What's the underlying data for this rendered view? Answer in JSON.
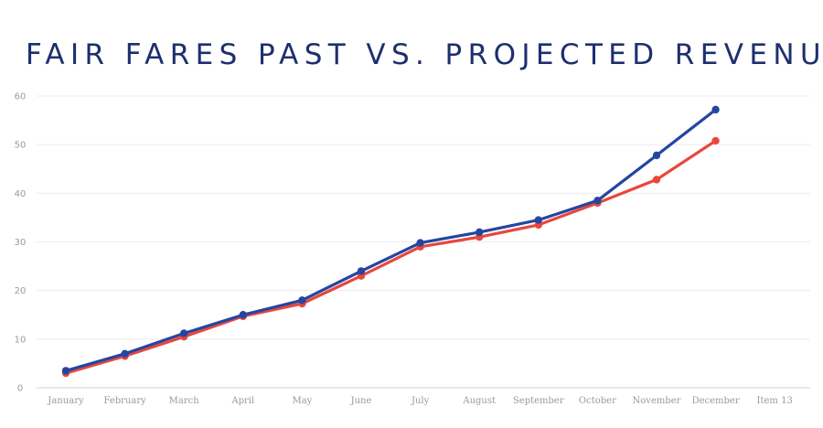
{
  "chart_data": {
    "type": "line",
    "title": "FAIR FARES PAST VS. PROJECTED REVENUE",
    "xlabel": "",
    "ylabel": "",
    "categories": [
      "January",
      "February",
      "March",
      "April",
      "May",
      "June",
      "July",
      "August",
      "September",
      "October",
      "November",
      "December",
      "Item 13"
    ],
    "ylim": [
      0,
      60
    ],
    "yticks": [
      0,
      10,
      20,
      30,
      40,
      50,
      60
    ],
    "grid": true,
    "legend": "none",
    "series": [
      {
        "color": "#e8473e",
        "values": [
          3.0,
          6.5,
          10.5,
          14.7,
          17.3,
          23.0,
          29.0,
          31.0,
          33.5,
          38.0,
          42.8,
          50.8,
          null
        ]
      },
      {
        "color": "#2446a0",
        "values": [
          3.5,
          7.0,
          11.2,
          15.0,
          18.0,
          24.0,
          29.8,
          32.0,
          34.5,
          38.5,
          47.8,
          57.2,
          null
        ]
      }
    ]
  }
}
